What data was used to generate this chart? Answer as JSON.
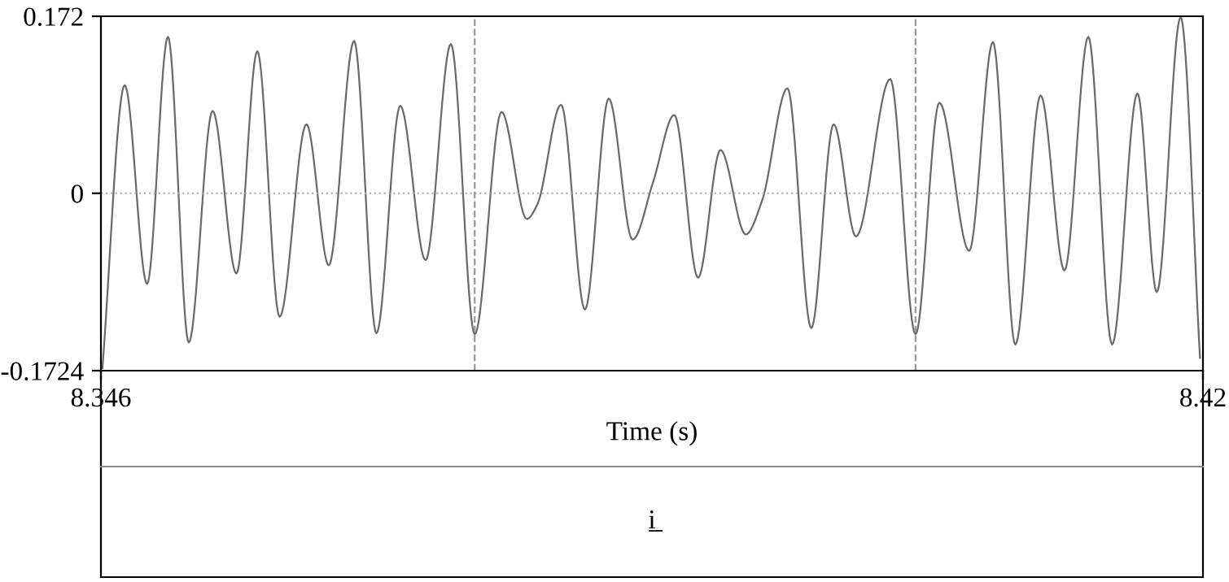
{
  "chart_data": {
    "type": "line",
    "xlabel": "Time (s)",
    "x": [
      8.3461,
      8.3476,
      8.3491,
      8.3505,
      8.3519,
      8.3535,
      8.3551,
      8.3565,
      8.358,
      8.3598,
      8.3613,
      8.363,
      8.3645,
      8.3661,
      8.3678,
      8.3695,
      8.3711,
      8.3729,
      8.3746,
      8.3753,
      8.3769,
      8.3785,
      8.3801,
      8.3817,
      8.3831,
      8.3845,
      8.3861,
      8.3876,
      8.3893,
      8.3904,
      8.3921,
      8.3937,
      8.3952,
      8.3967,
      8.399,
      8.4007,
      8.4023,
      8.4043,
      8.4059,
      8.4074,
      8.4091,
      8.4107,
      8.4123,
      8.4139,
      8.4156,
      8.4169,
      8.4185,
      8.4198
    ],
    "series": [
      {
        "color": "#6a6a6a",
        "values": [
          -0.17,
          0.105,
          -0.088,
          0.152,
          -0.145,
          0.08,
          -0.078,
          0.138,
          -0.12,
          0.067,
          -0.07,
          0.148,
          -0.136,
          0.085,
          -0.065,
          0.145,
          -0.137,
          0.079,
          -0.025,
          -0.011,
          0.086,
          -0.113,
          0.092,
          -0.045,
          0.012,
          0.076,
          -0.082,
          0.042,
          -0.04,
          -0.007,
          0.102,
          -0.131,
          0.067,
          -0.042,
          0.111,
          -0.137,
          0.088,
          -0.056,
          0.147,
          -0.147,
          0.095,
          -0.075,
          0.152,
          -0.147,
          0.097,
          -0.096,
          0.171,
          -0.16
        ]
      }
    ],
    "xlim": [
      8.346,
      8.42
    ],
    "xticks": [
      8.346,
      8.42
    ],
    "ylim": [
      -0.1724,
      0.172
    ],
    "yticks": [
      -0.1724,
      0,
      0.172
    ],
    "grid": false,
    "legend": false,
    "marker": "none",
    "line_style": "solid",
    "ref_lines": [
      {
        "axis": "y",
        "value": 0,
        "line_style": "dotted",
        "color": "#aaaaaa"
      },
      {
        "axis": "x",
        "value": 8.3711,
        "line_style": "dashed",
        "color": "#999999"
      },
      {
        "axis": "x",
        "value": 8.4007,
        "line_style": "dashed",
        "color": "#999999"
      }
    ],
    "annotations": [
      "i̲"
    ]
  }
}
